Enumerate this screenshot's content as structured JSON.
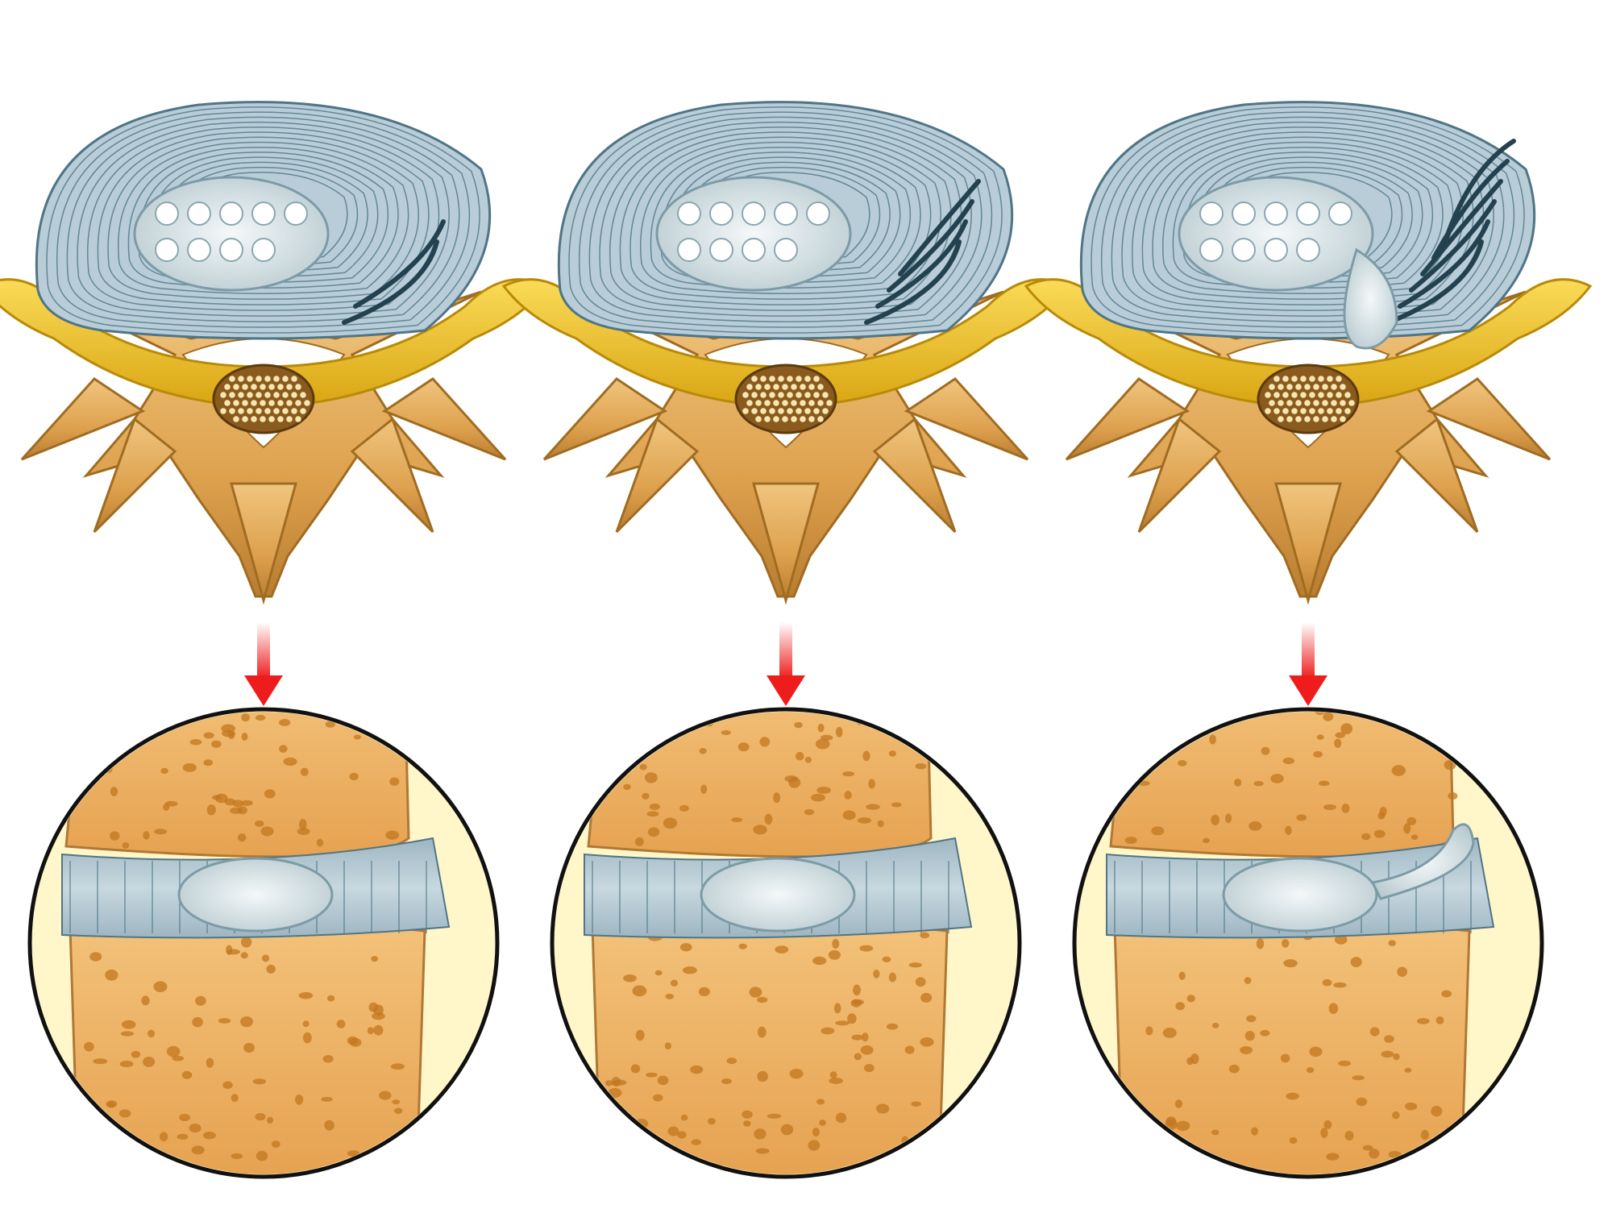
{
  "figure": {
    "panel_count": 3,
    "stages": [
      {
        "key": "stage-1",
        "annulus_tear": "minor",
        "herniation": false
      },
      {
        "key": "stage-2",
        "annulus_tear": "moderate",
        "herniation": false
      },
      {
        "key": "stage-3",
        "annulus_tear": "severe",
        "herniation": true
      }
    ],
    "colors": {
      "background": "#ffffff",
      "disc_annulus": "#b9cdd8",
      "disc_ring_line": "#4f7586",
      "nucleus": "#dfe9ec",
      "bone": "#e3ad5b",
      "bone_dark": "#a06c22",
      "nerve": "#f2c02a",
      "spinal_cord": "#8a5a1e",
      "spongy_bone": "#efb46a",
      "circle_bg": "#fff6c9",
      "arrow": "#ee1c1c"
    },
    "icons": {
      "top": "vertebra-cross-section-icon",
      "arrow": "arrow-down-icon",
      "bottom": "disc-side-view-icon"
    }
  }
}
